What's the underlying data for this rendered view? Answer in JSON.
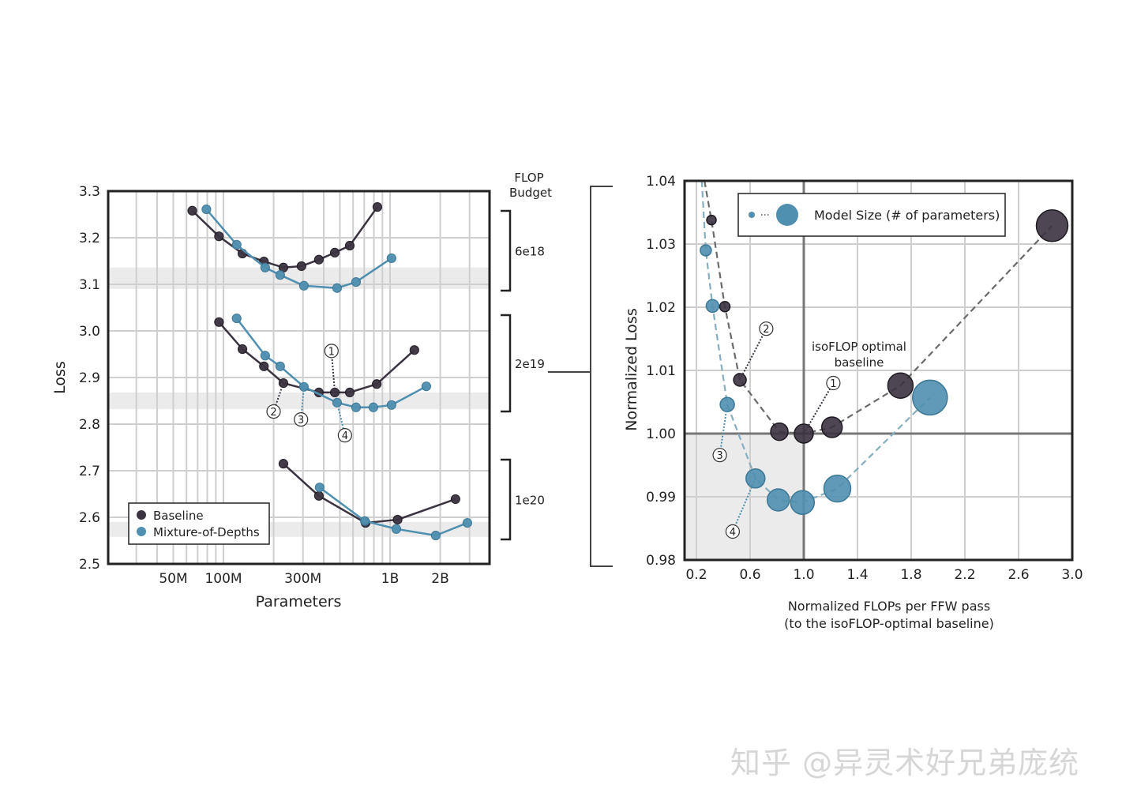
{
  "colors": {
    "baseline": "#3b3340",
    "mod": "#4f8fb0",
    "grid": "#cfcfcf",
    "band": "#ebebeb"
  },
  "watermark": "知乎 @异灵术好兄弟庞统",
  "chart_data": [
    {
      "type": "line",
      "title": "",
      "xlabel": "Parameters",
      "ylabel": "Loss",
      "xscale": "log",
      "xlim": [
        20300000,
        3950000000
      ],
      "ylim": [
        2.5,
        3.3
      ],
      "grid": true,
      "xticks": [
        {
          "v": 50000000,
          "label": "50M"
        },
        {
          "v": 100000000,
          "label": "100M"
        },
        {
          "v": 300000000,
          "label": "300M"
        },
        {
          "v": 1000000000,
          "label": "1B"
        },
        {
          "v": 2000000000,
          "label": "2B"
        }
      ],
      "yticks": [
        "2.5",
        "2.6",
        "2.7",
        "2.8",
        "2.9",
        "3.0",
        "3.1",
        "3.2",
        "3.3"
      ],
      "legend": {
        "position": "bottom-left",
        "entries": [
          "Baseline",
          "Mixture-of-Depths"
        ]
      },
      "budget_header": [
        "FLOP",
        "Budget"
      ],
      "groups": [
        {
          "budget": "6e18",
          "band": [
            3.09,
            3.136
          ],
          "series": [
            {
              "name": "Baseline",
              "x": [
                65000000.0,
                94000000.0,
                130000000.0,
                175000000.0,
                229000000.0,
                294000000.0,
                374000000.0,
                466000000.0,
                573000000.0,
                839000000.0
              ],
              "y": [
                3.258,
                3.203,
                3.166,
                3.149,
                3.136,
                3.139,
                3.153,
                3.168,
                3.183,
                3.266
              ]
            },
            {
              "name": "Mixture-of-Depths",
              "x": [
                79000000.0,
                120000000.0,
                178000000.0,
                219000000.0,
                304000000.0,
                481000000.0,
                625000000.0,
                1020000000.0
              ],
              "y": [
                3.261,
                3.185,
                3.136,
                3.12,
                3.097,
                3.092,
                3.105,
                3.156
              ]
            }
          ]
        },
        {
          "budget": "2e19",
          "band": [
            2.832,
            2.868
          ],
          "series": [
            {
              "name": "Baseline",
              "x": [
                94000000.0,
                130000000.0,
                175000000.0,
                229000000.0,
                374000000.0,
                466000000.0,
                573000000.0,
                832000000.0,
                1400000000.0
              ],
              "y": [
                3.019,
                2.961,
                2.924,
                2.888,
                2.868,
                2.868,
                2.868,
                2.886,
                2.959
              ]
            },
            {
              "name": "Mixture-of-Depths",
              "x": [
                120000000.0,
                178000000.0,
                219000000.0,
                304000000.0,
                481000000.0,
                625000000.0,
                794000000.0,
                1020000000.0,
                1650000000.0
              ],
              "y": [
                3.027,
                2.947,
                2.924,
                2.88,
                2.846,
                2.836,
                2.836,
                2.841,
                2.881
              ]
            }
          ],
          "annotations": [
            {
              "label": "1",
              "series": "Baseline",
              "at": [
                466000000.0,
                2.868
              ],
              "tx": 445000000.0,
              "ty": 2.957
            },
            {
              "label": "2",
              "series": "Baseline",
              "at": [
                229000000.0,
                2.888
              ],
              "tx": 200000000.0,
              "ty": 2.827
            },
            {
              "label": "3",
              "series": "Mixture-of-Depths",
              "at": [
                304000000.0,
                2.88
              ],
              "tx": 292000000.0,
              "ty": 2.81
            },
            {
              "label": "4",
              "series": "Mixture-of-Depths",
              "at": [
                481000000.0,
                2.846
              ],
              "tx": 536000000.0,
              "ty": 2.776
            }
          ]
        },
        {
          "budget": "1e20",
          "band": [
            2.558,
            2.59
          ],
          "series": [
            {
              "name": "Baseline",
              "x": [
                229000000.0,
                374000000.0,
                713000000.0,
                1110000000.0,
                2470000000.0
              ],
              "y": [
                2.715,
                2.646,
                2.588,
                2.595,
                2.639
              ]
            },
            {
              "name": "Mixture-of-Depths",
              "x": [
                378000000.0,
                706000000.0,
                1090000000.0,
                1880000000.0,
                2910000000.0
              ],
              "y": [
                2.664,
                2.592,
                2.575,
                2.561,
                2.588
              ]
            }
          ]
        }
      ]
    },
    {
      "type": "scatter",
      "title": "",
      "xlabel": [
        "Normalized FLOPs per FFW pass",
        "(to the isoFLOP-optimal baseline)"
      ],
      "ylabel": "Normalized Loss",
      "xlim": [
        0.112,
        3.0
      ],
      "ylim": [
        0.98,
        1.04
      ],
      "grid": true,
      "xticks": [
        "0.2",
        "0.6",
        "1.0",
        "1.4",
        "1.8",
        "2.2",
        "2.6",
        "3.0"
      ],
      "yticks": [
        "0.98",
        "0.99",
        "1.00",
        "1.01",
        "1.02",
        "1.03",
        "1.04"
      ],
      "legend": {
        "position": "top",
        "label": "Model Size (# of parameters)"
      },
      "reference": {
        "x": 1.0,
        "y": 1.0,
        "label": [
          "isoFLOP optimal",
          "baseline"
        ]
      },
      "series": [
        {
          "name": "Baseline",
          "x": [
            0.312,
            0.412,
            0.524,
            0.818,
            1.0,
            1.21,
            1.72,
            2.85
          ],
          "y": [
            1.0338,
            1.0201,
            1.0085,
            1.0003,
            1.0,
            1.001,
            1.0076,
            1.0329
          ],
          "size_rank": [
            1,
            2,
            3,
            4,
            5,
            6,
            7,
            8
          ]
        },
        {
          "name": "Mixture-of-Depths",
          "x": [
            0.27,
            0.32,
            0.43,
            0.64,
            0.81,
            0.99,
            1.25,
            1.94
          ],
          "y": [
            1.029,
            1.0202,
            1.0046,
            0.9929,
            0.9895,
            0.9891,
            0.9913,
            1.0057
          ],
          "size_rank": [
            1,
            2,
            3,
            4,
            5,
            6,
            7,
            8
          ]
        }
      ],
      "annotations": [
        {
          "label": "1",
          "series": "Baseline",
          "at": [
            1.0,
            1.0
          ],
          "tx": 1.22,
          "ty": 1.008
        },
        {
          "label": "2",
          "series": "Baseline",
          "at": [
            0.524,
            1.0085
          ],
          "tx": 0.72,
          "ty": 1.0166
        },
        {
          "label": "3",
          "series": "Mixture-of-Depths",
          "at": [
            0.43,
            1.0046
          ],
          "tx": 0.374,
          "ty": 0.9966
        },
        {
          "label": "4",
          "series": "Mixture-of-Depths",
          "at": [
            0.64,
            0.9929
          ],
          "tx": 0.47,
          "ty": 0.9845
        }
      ]
    }
  ]
}
